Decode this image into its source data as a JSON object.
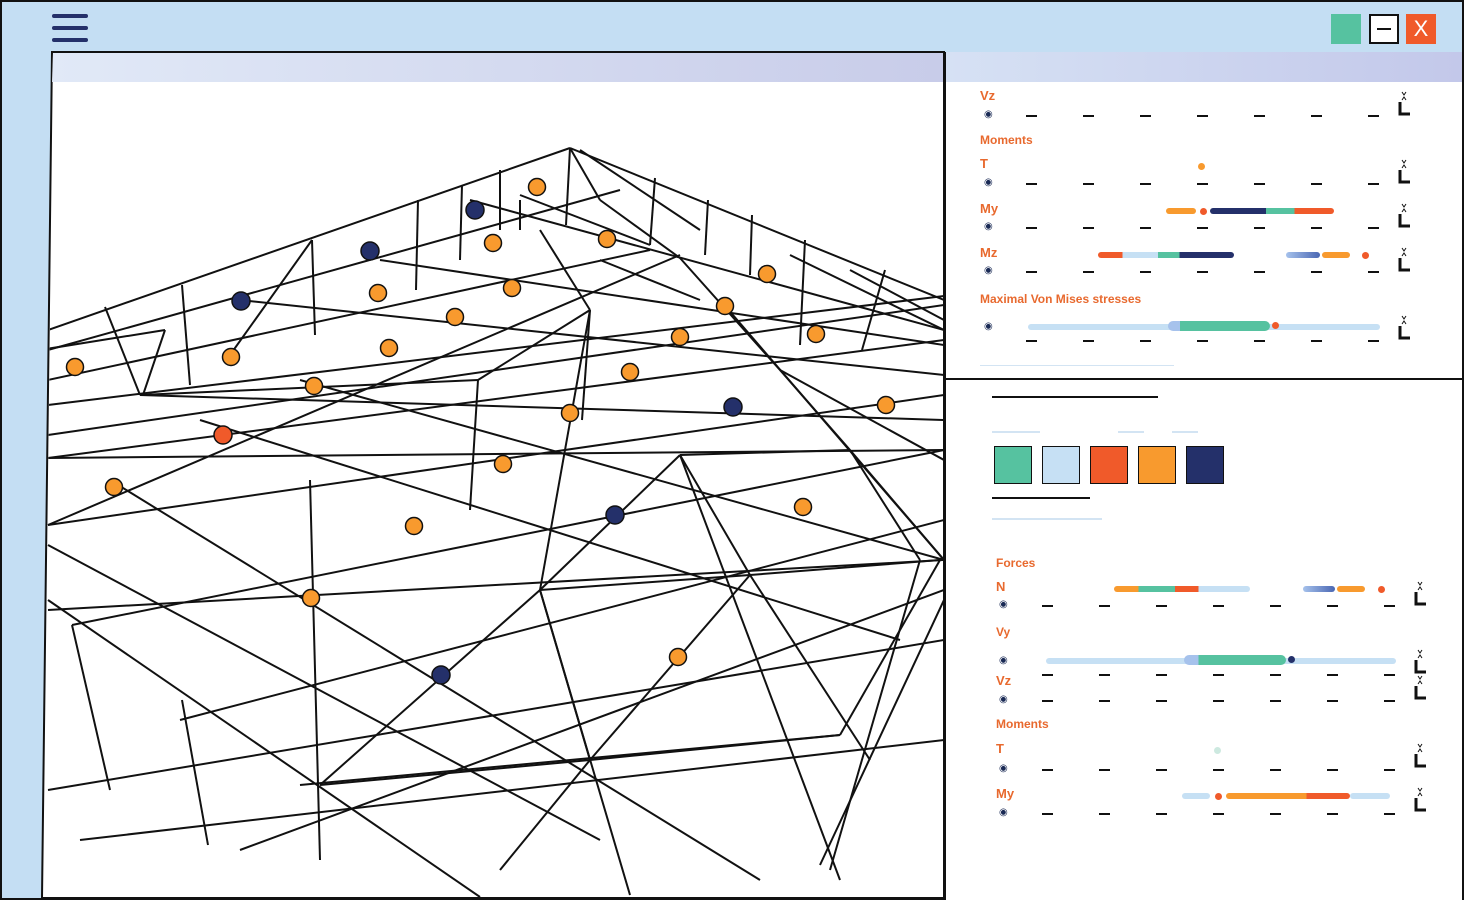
{
  "window": {
    "controls": {
      "close_glyph": "X"
    }
  },
  "colors": {
    "frame_bg": "#c4def3",
    "accent_orange": "#f89a2e",
    "accent_red": "#f05a2a",
    "accent_teal": "#56c2a0",
    "accent_navy": "#24306a",
    "accent_light_blue": "#c6e0f4",
    "label_orange": "#e8692e"
  },
  "top_panel": {
    "rows": [
      {
        "label": "Vz"
      },
      {
        "section": "Moments"
      },
      {
        "label": "T"
      },
      {
        "label": "My"
      },
      {
        "label": "Mz"
      },
      {
        "section": "Maximal  Von Mises stresses"
      }
    ]
  },
  "palette": {
    "swatches": [
      {
        "name": "teal",
        "color": "#56c2a0"
      },
      {
        "name": "light-blue",
        "color": "#c6e0f4"
      },
      {
        "name": "red-orange",
        "color": "#f05a2a"
      },
      {
        "name": "orange",
        "color": "#f89a2e"
      },
      {
        "name": "navy",
        "color": "#24306a"
      }
    ]
  },
  "bottom_panel": {
    "rows": [
      {
        "section": "Forces"
      },
      {
        "label": "N"
      },
      {
        "label": "Vy"
      },
      {
        "label": "Vz"
      },
      {
        "section": "Moments"
      },
      {
        "label": "T"
      },
      {
        "label": "My"
      }
    ]
  },
  "icons": {
    "menu": "hamburger-icon",
    "maximize": "maximize-icon",
    "minimize": "minimize-icon",
    "close": "close-icon",
    "visibility": "eye-icon",
    "collapse": "collapse-icon"
  }
}
